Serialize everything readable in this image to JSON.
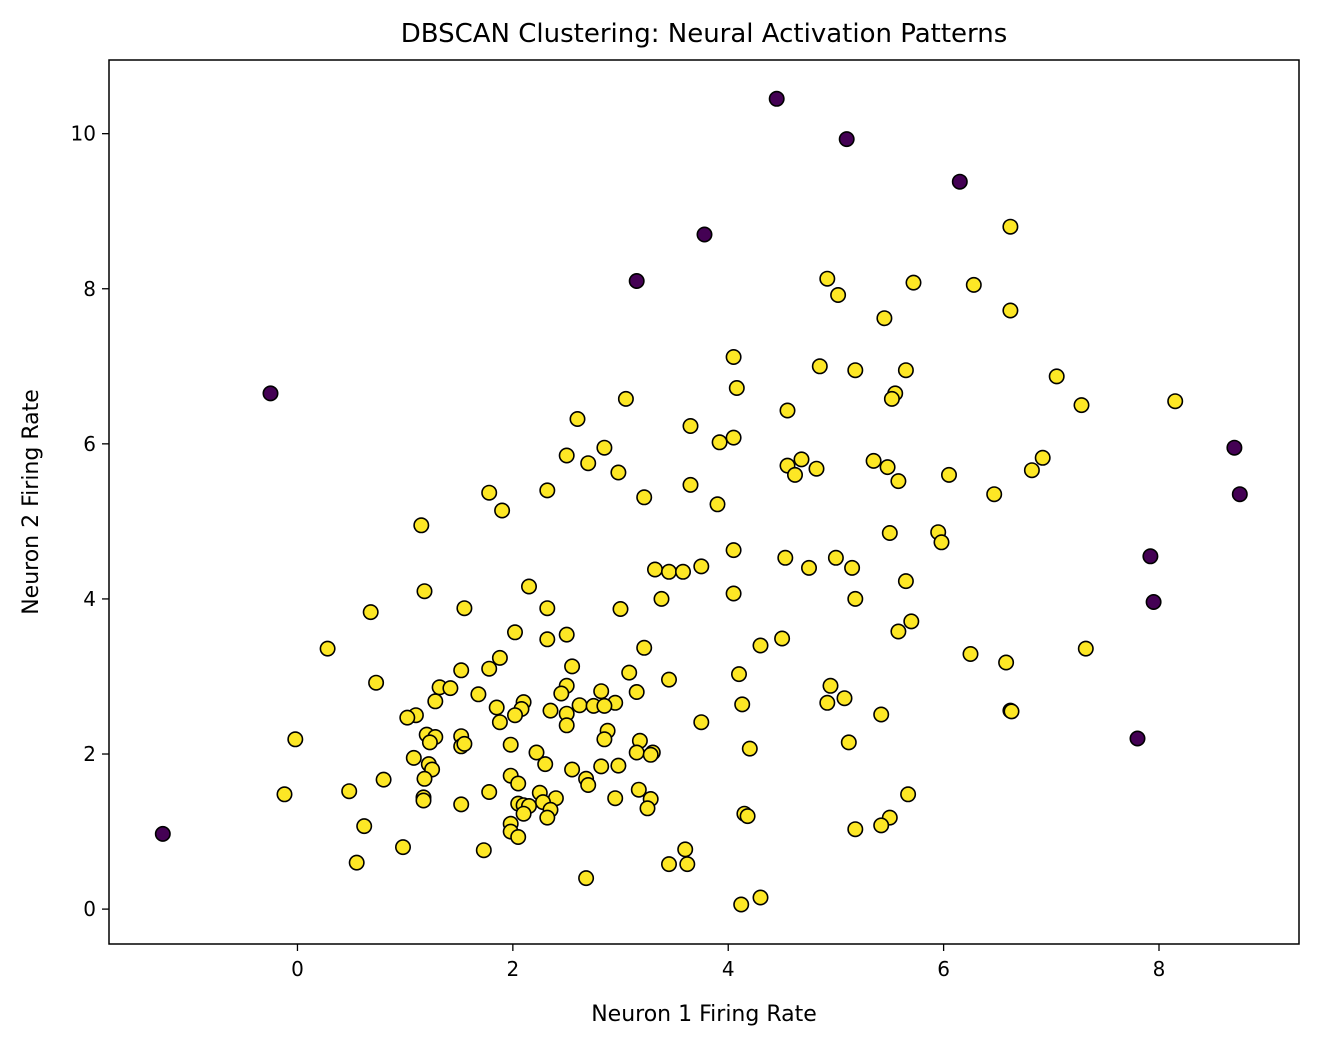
{
  "chart_data": {
    "type": "scatter",
    "title": "DBSCAN Clustering: Neural Activation Patterns",
    "xlabel": "Neuron 1 Firing Rate",
    "ylabel": "Neuron 2 Firing Rate",
    "xlim": [
      -1.75,
      9.3
    ],
    "ylim": [
      -0.45,
      10.95
    ],
    "xticks": [
      0,
      2,
      4,
      6,
      8
    ],
    "yticks": [
      0,
      2,
      4,
      6,
      8,
      10
    ],
    "grid": false,
    "legend": "none",
    "colors": {
      "noise": "#440154",
      "cluster": "#fde725"
    },
    "series": [
      {
        "cluster": -1,
        "color": "#440154",
        "points": [
          [
            4.45,
            10.45
          ],
          [
            5.1,
            9.93
          ],
          [
            6.15,
            9.38
          ],
          [
            3.78,
            8.7
          ],
          [
            3.15,
            8.1
          ],
          [
            -0.25,
            6.65
          ],
          [
            8.7,
            5.95
          ],
          [
            8.75,
            5.35
          ],
          [
            7.92,
            4.55
          ],
          [
            7.95,
            3.96
          ],
          [
            7.8,
            2.2
          ],
          [
            -1.25,
            0.97
          ]
        ]
      },
      {
        "cluster": 0,
        "color": "#fde725",
        "points": [
          [
            6.62,
            8.8
          ],
          [
            4.92,
            8.13
          ],
          [
            5.72,
            8.08
          ],
          [
            6.28,
            8.05
          ],
          [
            5.02,
            7.92
          ],
          [
            5.45,
            7.62
          ],
          [
            6.62,
            7.72
          ],
          [
            4.05,
            7.12
          ],
          [
            4.85,
            7.0
          ],
          [
            5.18,
            6.95
          ],
          [
            5.65,
            6.95
          ],
          [
            7.05,
            6.87
          ],
          [
            4.08,
            6.72
          ],
          [
            5.55,
            6.65
          ],
          [
            5.52,
            6.58
          ],
          [
            8.15,
            6.55
          ],
          [
            7.28,
            6.5
          ],
          [
            3.05,
            6.58
          ],
          [
            4.55,
            6.43
          ],
          [
            2.6,
            6.32
          ],
          [
            3.65,
            6.23
          ],
          [
            4.05,
            6.08
          ],
          [
            3.92,
            6.02
          ],
          [
            2.85,
            5.95
          ],
          [
            2.5,
            5.85
          ],
          [
            2.7,
            5.75
          ],
          [
            4.68,
            5.8
          ],
          [
            6.92,
            5.82
          ],
          [
            5.35,
            5.78
          ],
          [
            4.55,
            5.72
          ],
          [
            4.82,
            5.68
          ],
          [
            5.48,
            5.7
          ],
          [
            6.82,
            5.66
          ],
          [
            2.98,
            5.63
          ],
          [
            4.62,
            5.6
          ],
          [
            6.05,
            5.6
          ],
          [
            5.58,
            5.52
          ],
          [
            3.65,
            5.47
          ],
          [
            2.32,
            5.4
          ],
          [
            1.78,
            5.37
          ],
          [
            6.47,
            5.35
          ],
          [
            3.22,
            5.31
          ],
          [
            3.9,
            5.22
          ],
          [
            1.9,
            5.14
          ],
          [
            1.15,
            4.95
          ],
          [
            5.95,
            4.86
          ],
          [
            5.5,
            4.85
          ],
          [
            5.98,
            4.73
          ],
          [
            4.05,
            4.63
          ],
          [
            4.53,
            4.53
          ],
          [
            5.0,
            4.53
          ],
          [
            3.75,
            4.42
          ],
          [
            4.75,
            4.4
          ],
          [
            5.15,
            4.4
          ],
          [
            3.32,
            4.38
          ],
          [
            3.45,
            4.35
          ],
          [
            3.58,
            4.35
          ],
          [
            5.65,
            4.23
          ],
          [
            2.15,
            4.16
          ],
          [
            1.18,
            4.1
          ],
          [
            4.05,
            4.07
          ],
          [
            3.38,
            4.0
          ],
          [
            5.18,
            4.0
          ],
          [
            2.32,
            3.88
          ],
          [
            1.55,
            3.88
          ],
          [
            3.0,
            3.87
          ],
          [
            0.68,
            3.83
          ],
          [
            5.7,
            3.71
          ],
          [
            5.58,
            3.58
          ],
          [
            2.5,
            3.54
          ],
          [
            2.02,
            3.57
          ],
          [
            4.5,
            3.49
          ],
          [
            2.32,
            3.48
          ],
          [
            4.3,
            3.4
          ],
          [
            0.28,
            3.36
          ],
          [
            3.22,
            3.37
          ],
          [
            7.32,
            3.36
          ],
          [
            6.25,
            3.29
          ],
          [
            1.88,
            3.24
          ],
          [
            6.58,
            3.18
          ],
          [
            2.55,
            3.13
          ],
          [
            1.52,
            3.08
          ],
          [
            1.78,
            3.1
          ],
          [
            3.08,
            3.05
          ],
          [
            4.1,
            3.03
          ],
          [
            3.45,
            2.96
          ],
          [
            0.73,
            2.92
          ],
          [
            4.95,
            2.88
          ],
          [
            1.32,
            2.86
          ],
          [
            1.42,
            2.85
          ],
          [
            2.5,
            2.88
          ],
          [
            2.82,
            2.81
          ],
          [
            1.68,
            2.77
          ],
          [
            2.45,
            2.78
          ],
          [
            3.15,
            2.8
          ],
          [
            5.08,
            2.72
          ],
          [
            1.28,
            2.68
          ],
          [
            2.1,
            2.67
          ],
          [
            4.92,
            2.66
          ],
          [
            2.95,
            2.66
          ],
          [
            4.13,
            2.64
          ],
          [
            2.62,
            2.63
          ],
          [
            2.75,
            2.62
          ],
          [
            2.85,
            2.62
          ],
          [
            1.85,
            2.6
          ],
          [
            2.08,
            2.58
          ],
          [
            6.62,
            2.56
          ],
          [
            6.63,
            2.55
          ],
          [
            2.35,
            2.56
          ],
          [
            2.02,
            2.5
          ],
          [
            2.5,
            2.52
          ],
          [
            1.1,
            2.5
          ],
          [
            1.02,
            2.47
          ],
          [
            5.42,
            2.51
          ],
          [
            1.88,
            2.41
          ],
          [
            3.75,
            2.41
          ],
          [
            2.5,
            2.37
          ],
          [
            2.88,
            2.3
          ],
          [
            1.2,
            2.25
          ],
          [
            1.52,
            2.23
          ],
          [
            1.28,
            2.22
          ],
          [
            -0.02,
            2.19
          ],
          [
            2.85,
            2.19
          ],
          [
            3.18,
            2.17
          ],
          [
            1.23,
            2.15
          ],
          [
            5.12,
            2.15
          ],
          [
            1.52,
            2.1
          ],
          [
            1.55,
            2.13
          ],
          [
            1.98,
            2.12
          ],
          [
            4.2,
            2.07
          ],
          [
            3.15,
            2.02
          ],
          [
            2.22,
            2.02
          ],
          [
            3.3,
            2.02
          ],
          [
            3.28,
            1.99
          ],
          [
            1.08,
            1.95
          ],
          [
            1.22,
            1.87
          ],
          [
            2.3,
            1.87
          ],
          [
            2.82,
            1.84
          ],
          [
            2.98,
            1.85
          ],
          [
            1.25,
            1.8
          ],
          [
            2.55,
            1.8
          ],
          [
            1.98,
            1.72
          ],
          [
            2.68,
            1.68
          ],
          [
            1.18,
            1.68
          ],
          [
            0.8,
            1.67
          ],
          [
            2.05,
            1.62
          ],
          [
            2.7,
            1.6
          ],
          [
            0.48,
            1.52
          ],
          [
            1.78,
            1.51
          ],
          [
            2.25,
            1.5
          ],
          [
            5.67,
            1.48
          ],
          [
            -0.12,
            1.48
          ],
          [
            3.17,
            1.54
          ],
          [
            1.17,
            1.44
          ],
          [
            2.4,
            1.43
          ],
          [
            2.95,
            1.43
          ],
          [
            3.28,
            1.42
          ],
          [
            1.17,
            1.4
          ],
          [
            2.28,
            1.38
          ],
          [
            2.05,
            1.36
          ],
          [
            2.1,
            1.34
          ],
          [
            1.52,
            1.35
          ],
          [
            2.15,
            1.33
          ],
          [
            3.25,
            1.3
          ],
          [
            2.35,
            1.28
          ],
          [
            2.1,
            1.23
          ],
          [
            4.15,
            1.23
          ],
          [
            4.18,
            1.2
          ],
          [
            5.5,
            1.18
          ],
          [
            2.32,
            1.18
          ],
          [
            1.98,
            1.1
          ],
          [
            5.42,
            1.08
          ],
          [
            0.62,
            1.07
          ],
          [
            5.18,
            1.03
          ],
          [
            1.98,
            1.0
          ],
          [
            2.05,
            0.93
          ],
          [
            0.98,
            0.8
          ],
          [
            1.73,
            0.76
          ],
          [
            3.6,
            0.77
          ],
          [
            0.55,
            0.6
          ],
          [
            3.45,
            0.58
          ],
          [
            3.62,
            0.58
          ],
          [
            2.68,
            0.4
          ],
          [
            4.3,
            0.15
          ],
          [
            4.12,
            0.06
          ]
        ]
      }
    ]
  }
}
